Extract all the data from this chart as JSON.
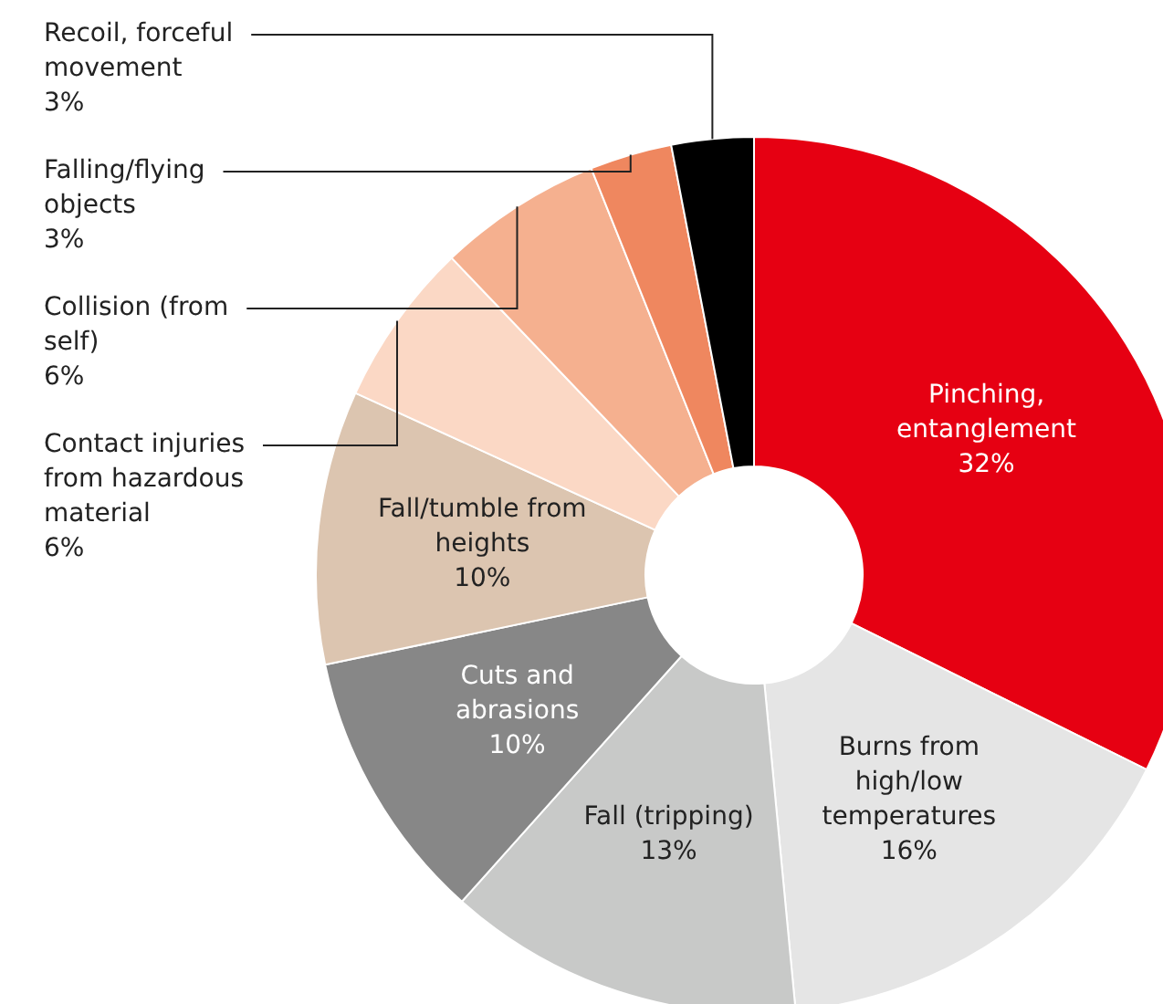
{
  "chart_data": {
    "type": "donut",
    "categories": [
      "Pinching, entanglement",
      "Burns from high/low temperatures",
      "Fall (tripping)",
      "Cuts and abrasions",
      "Fall/tumble from heights",
      "Contact injuries from hazardous material",
      "Collision (from self)",
      "Falling/flying objects",
      "Recoil, forceful movement"
    ],
    "values": [
      32,
      16,
      13,
      10,
      10,
      6,
      6,
      3,
      3
    ],
    "value_labels": [
      "32%",
      "16%",
      "13%",
      "10%",
      "10%",
      "6%",
      "6%",
      "3%",
      "3%"
    ],
    "colors": [
      "#e60012",
      "#e5e5e5",
      "#c8c9c8",
      "#878787",
      "#dcc5b0",
      "#fbd8c5",
      "#f5b08f",
      "#ef875f",
      "#000000"
    ],
    "legend": false
  }
}
